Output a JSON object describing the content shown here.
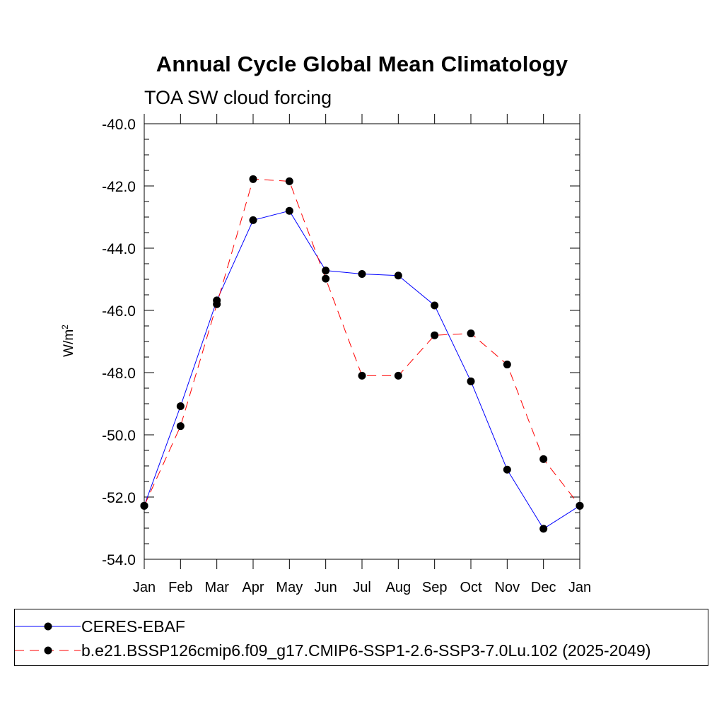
{
  "title": "Annual Cycle Global Mean Climatology",
  "subtitle": "TOA SW cloud forcing",
  "ylabel_text": "W/m",
  "ylabel_sup": "2",
  "chart_data": {
    "type": "line",
    "title": "Annual Cycle Global Mean Climatology",
    "subtitle": "TOA SW cloud forcing",
    "ylabel": "W/m2",
    "xlabel": "",
    "categories": [
      "Jan",
      "Feb",
      "Mar",
      "Apr",
      "May",
      "Jun",
      "Jul",
      "Aug",
      "Sep",
      "Oct",
      "Nov",
      "Dec",
      "Jan"
    ],
    "ylim": [
      -54.0,
      -40.0
    ],
    "yticks": [
      "-40.0",
      "-42.0",
      "-44.0",
      "-46.0",
      "-48.0",
      "-50.0",
      "-52.0",
      "-54.0"
    ],
    "ytick_values": [
      -40,
      -42,
      -44,
      -46,
      -48,
      -50,
      -52,
      -54
    ],
    "grid": false,
    "legend_position": "bottom",
    "series": [
      {
        "name": "CERES-EBAF",
        "color": "#0000ff",
        "dash": "solid",
        "values": [
          -52.28,
          -49.08,
          -45.68,
          -43.1,
          -42.8,
          -44.72,
          -44.83,
          -44.88,
          -45.84,
          -48.28,
          -51.12,
          -53.02,
          -52.28
        ]
      },
      {
        "name": "b.e21.BSSP126cmip6.f09_g17.CMIP6-SSP1-2.6-SSP3-7.0Lu.102 (2025-2049)",
        "color": "#ff0000",
        "dash": "dashed",
        "values": [
          -52.28,
          -49.72,
          -45.8,
          -41.78,
          -41.85,
          -44.98,
          -48.1,
          -48.1,
          -46.8,
          -46.74,
          -47.74,
          -50.78,
          -52.28
        ]
      }
    ]
  }
}
